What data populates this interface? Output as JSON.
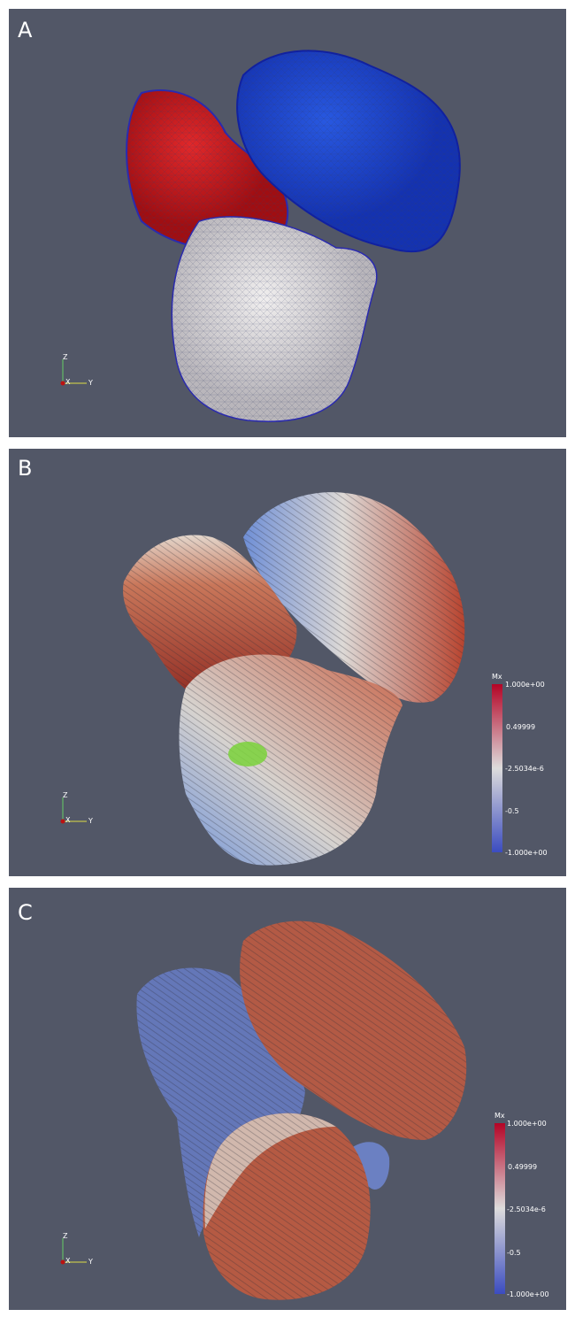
{
  "panels": [
    {
      "label": "A",
      "axes": {
        "z": "Z",
        "x": "X",
        "y": "Y"
      }
    },
    {
      "label": "B",
      "axes": {
        "z": "Z",
        "x": "X",
        "y": "Y"
      },
      "colorbar": {
        "title": "Mx",
        "ticks": [
          "1.000e+00",
          "0.49999",
          "-2.5034e-6",
          "-0.5",
          "-1.000e+00"
        ]
      }
    },
    {
      "label": "C",
      "axes": {
        "z": "Z",
        "x": "X",
        "y": "Y"
      },
      "colorbar": {
        "title": "Mx",
        "ticks": [
          "1.000e+00",
          "0.49999",
          "-2.5034e-6",
          "-0.5",
          "-1.000e+00"
        ]
      }
    }
  ]
}
